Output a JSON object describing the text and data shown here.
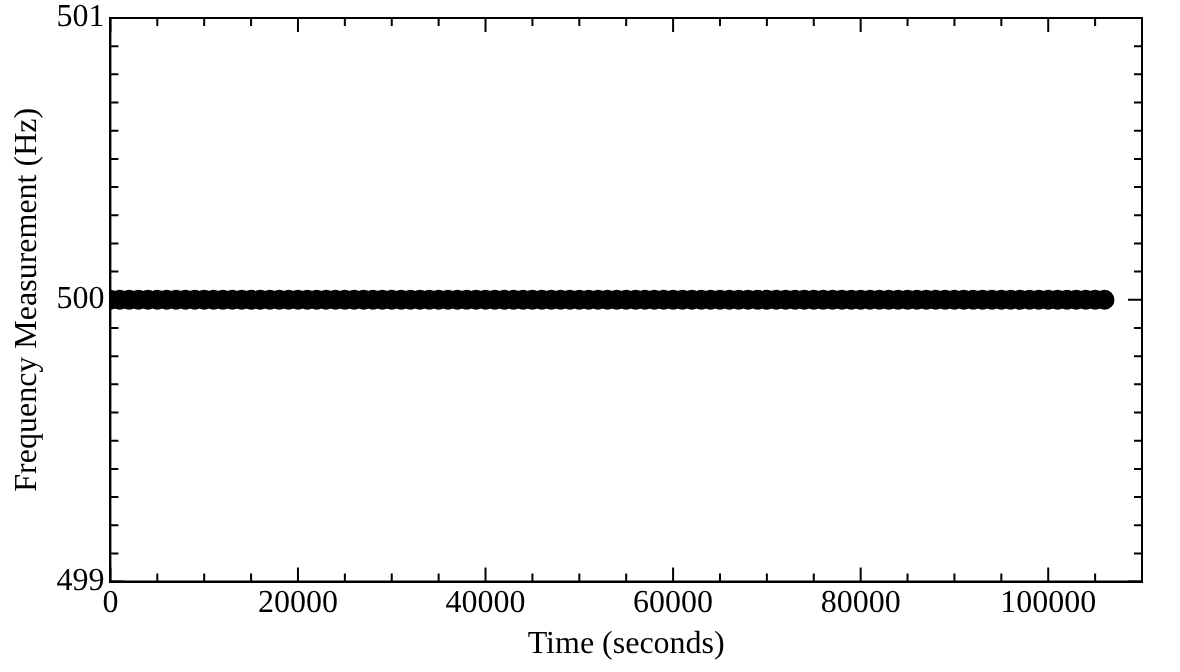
{
  "chart_data": {
    "type": "scatter",
    "xlabel": "Time (seconds)",
    "ylabel": "Frequency Measurement (Hz)",
    "x": [
      0,
      1000,
      2000,
      3000,
      4000,
      5000,
      6000,
      7000,
      8000,
      9000,
      10000,
      11000,
      12000,
      13000,
      14000,
      15000,
      16000,
      17000,
      18000,
      19000,
      20000,
      21000,
      22000,
      23000,
      24000,
      25000,
      26000,
      27000,
      28000,
      29000,
      30000,
      31000,
      32000,
      33000,
      34000,
      35000,
      36000,
      37000,
      38000,
      39000,
      40000,
      41000,
      42000,
      43000,
      44000,
      45000,
      46000,
      47000,
      48000,
      49000,
      50000,
      51000,
      52000,
      53000,
      54000,
      55000,
      56000,
      57000,
      58000,
      59000,
      60000,
      61000,
      62000,
      63000,
      64000,
      65000,
      66000,
      67000,
      68000,
      69000,
      70000,
      71000,
      72000,
      73000,
      74000,
      75000,
      76000,
      77000,
      78000,
      79000,
      80000,
      81000,
      82000,
      83000,
      84000,
      85000,
      86000,
      87000,
      88000,
      89000,
      90000,
      91000,
      92000,
      93000,
      94000,
      95000,
      96000,
      97000,
      98000,
      99000,
      100000,
      101000,
      102000,
      103000,
      104000,
      105000,
      106000
    ],
    "series": [
      {
        "color": "#000000",
        "values": [
          500,
          500,
          500,
          500,
          500,
          500,
          500,
          500,
          500,
          500,
          500,
          500,
          500,
          500,
          500,
          500,
          500,
          500,
          500,
          500,
          500,
          500,
          500,
          500,
          500,
          500,
          500,
          500,
          500,
          500,
          500,
          500,
          500,
          500,
          500,
          500,
          500,
          500,
          500,
          500,
          500,
          500,
          500,
          500,
          500,
          500,
          500,
          500,
          500,
          500,
          500,
          500,
          500,
          500,
          500,
          500,
          500,
          500,
          500,
          500,
          500,
          500,
          500,
          500,
          500,
          500,
          500,
          500,
          500,
          500,
          500,
          500,
          500,
          500,
          500,
          500,
          500,
          500,
          500,
          500,
          500,
          500,
          500,
          500,
          500,
          500,
          500,
          500,
          500,
          500,
          500,
          500,
          500,
          500,
          500,
          500,
          500,
          500,
          500,
          500,
          500,
          500,
          500,
          500,
          500,
          500,
          500
        ]
      }
    ],
    "xlim": [
      0,
      110000
    ],
    "xticks": [
      0,
      {
        "value": 5000,
        "label": null
      },
      {
        "value": 10000,
        "label": null
      },
      {
        "value": 15000,
        "label": null
      },
      20000,
      {
        "value": 25000,
        "label": null
      },
      {
        "value": 30000,
        "label": null
      },
      {
        "value": 35000,
        "label": null
      },
      40000,
      {
        "value": 45000,
        "label": null
      },
      {
        "value": 50000,
        "label": null
      },
      {
        "value": 55000,
        "label": null
      },
      60000,
      {
        "value": 65000,
        "label": null
      },
      {
        "value": 70000,
        "label": null
      },
      {
        "value": 75000,
        "label": null
      },
      80000,
      {
        "value": 85000,
        "label": null
      },
      {
        "value": 90000,
        "label": null
      },
      {
        "value": 95000,
        "label": null
      },
      100000,
      {
        "value": 105000,
        "label": null
      }
    ],
    "ylim": [
      499,
      501
    ],
    "yticks": [
      499,
      {
        "value": 499.1,
        "label": null
      },
      {
        "value": 499.2,
        "label": null
      },
      {
        "value": 499.3,
        "label": null
      },
      {
        "value": 499.4,
        "label": null
      },
      {
        "value": 499.5,
        "label": null
      },
      {
        "value": 499.6,
        "label": null
      },
      {
        "value": 499.7,
        "label": null
      },
      {
        "value": 499.8,
        "label": null
      },
      {
        "value": 499.9,
        "label": null
      },
      500,
      {
        "value": 500.1,
        "label": null
      },
      {
        "value": 500.2,
        "label": null
      },
      {
        "value": 500.3,
        "label": null
      },
      {
        "value": 500.4,
        "label": null
      },
      {
        "value": 500.5,
        "label": null
      },
      {
        "value": 500.6,
        "label": null
      },
      {
        "value": 500.7,
        "label": null
      },
      {
        "value": 500.8,
        "label": null
      },
      {
        "value": 500.9,
        "label": null
      },
      501
    ],
    "marker": "circle",
    "grid": false,
    "legend": false
  }
}
